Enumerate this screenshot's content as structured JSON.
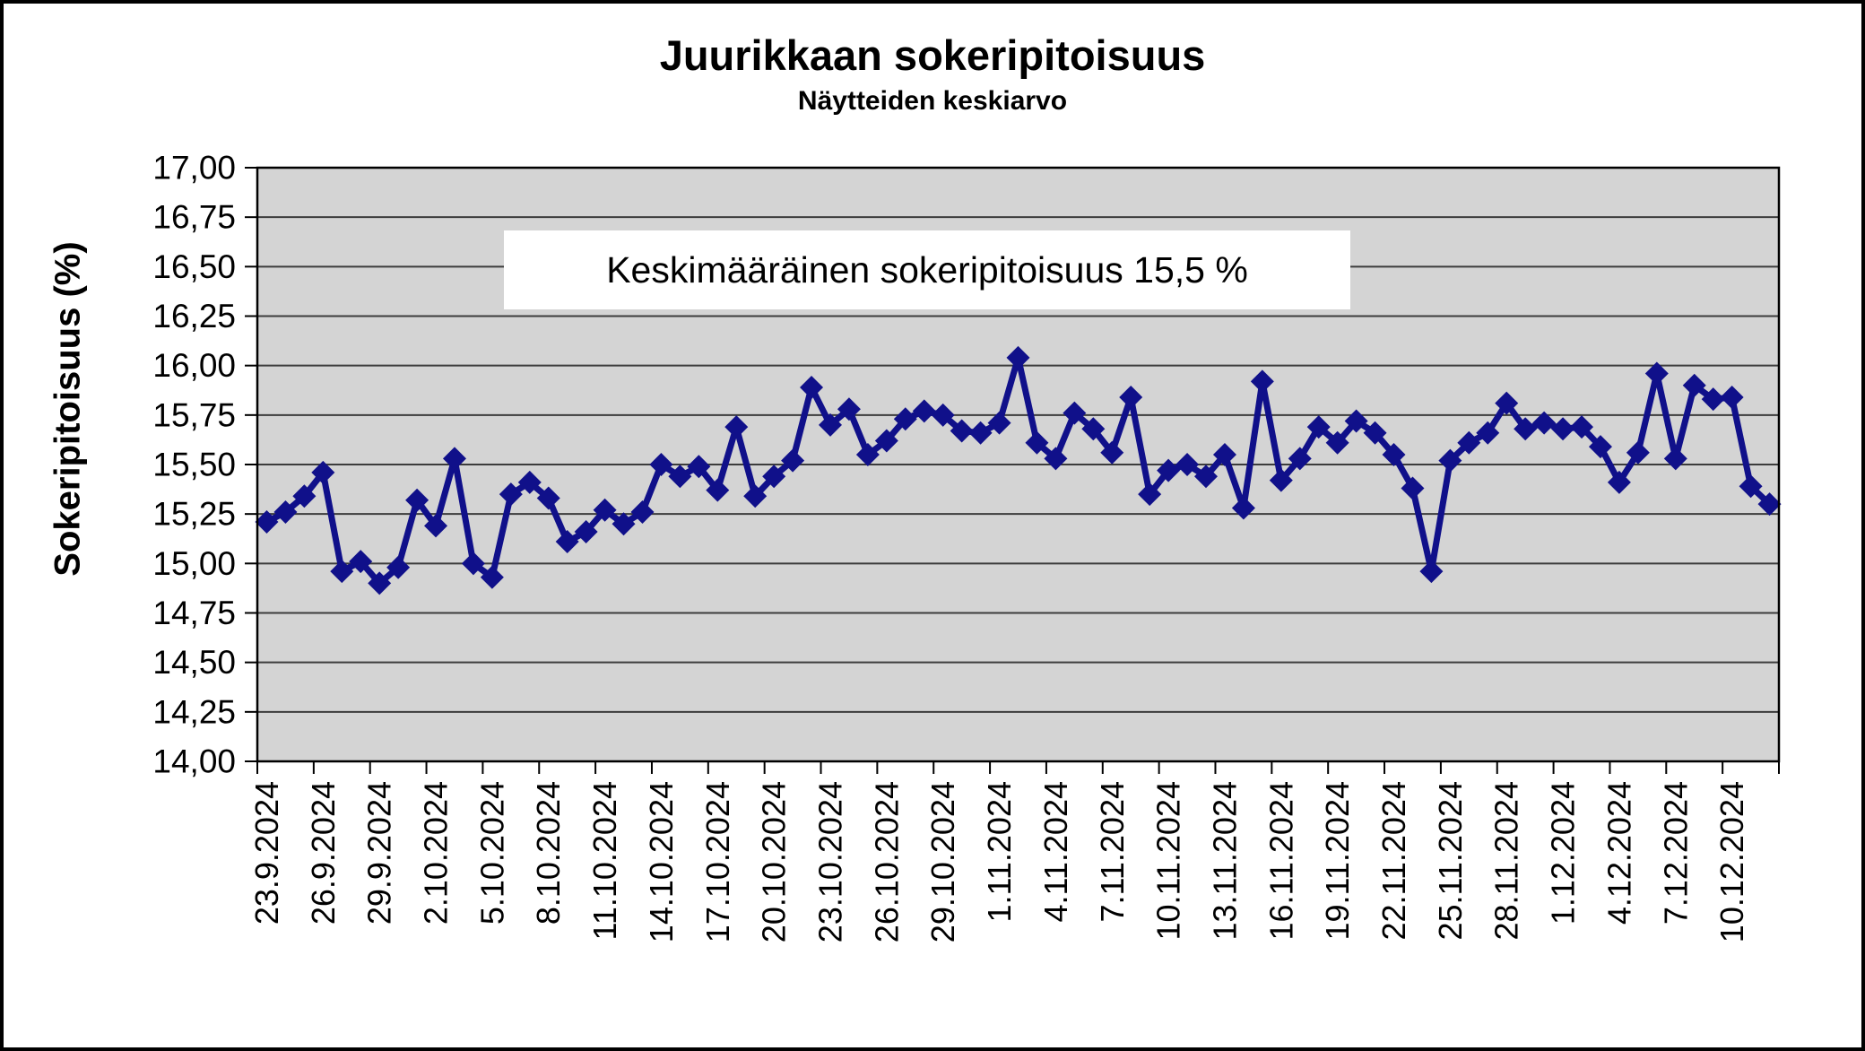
{
  "page": {
    "background": "#ffffff",
    "border_color": "#000000"
  },
  "chart": {
    "title": "Juurikkaan sokeripitoisuus",
    "subtitle": "Näytteiden keskiarvo",
    "y_axis_title": "Sokeripitoisuus (%)",
    "annotation": "Keskimääräinen sokeripitoisuus 15,5 %"
  },
  "chart_data": {
    "type": "line",
    "title": "Juurikkaan sokeripitoisuus",
    "subtitle": "Näytteiden keskiarvo",
    "xlabel": "",
    "ylabel": "Sokeripitoisuus (%)",
    "ylim": [
      14.0,
      17.0
    ],
    "ytick_step": 0.25,
    "ytick_labels": [
      "14,00",
      "14,25",
      "14,50",
      "14,75",
      "15,00",
      "15,25",
      "15,50",
      "15,75",
      "16,00",
      "16,25",
      "16,50",
      "16,75",
      "17,00"
    ],
    "xtick_labels": [
      "23.9.2024",
      "26.9.2024",
      "29.9.2024",
      "2.10.2024",
      "5.10.2024",
      "8.10.2024",
      "11.10.2024",
      "14.10.2024",
      "17.10.2024",
      "20.10.2024",
      "23.10.2024",
      "26.10.2024",
      "29.10.2024",
      "1.11.2024",
      "4.11.2024",
      "7.11.2024",
      "10.11.2024",
      "13.11.2024",
      "16.11.2024",
      "19.11.2024",
      "22.11.2024",
      "25.11.2024",
      "28.11.2024",
      "1.12.2024",
      "4.12.2024",
      "7.12.2024",
      "10.12.2024"
    ],
    "x_points_per_tick": 3,
    "grid": true,
    "legend": "none",
    "plot_bg": "#d4d4d4",
    "grid_color": "#3c3c3c",
    "axis_color": "#000000",
    "annotation": "Keskimääräinen sokeripitoisuus 15,5 %",
    "series": [
      {
        "marker": "diamond",
        "color": "#10108a",
        "values": [
          15.21,
          15.26,
          15.34,
          15.46,
          14.96,
          15.01,
          14.9,
          14.98,
          15.32,
          15.19,
          15.53,
          15.0,
          14.93,
          15.35,
          15.41,
          15.33,
          15.11,
          15.16,
          15.27,
          15.2,
          15.26,
          15.5,
          15.44,
          15.49,
          15.37,
          15.69,
          15.34,
          15.44,
          15.52,
          15.89,
          15.7,
          15.78,
          15.55,
          15.62,
          15.73,
          15.77,
          15.75,
          15.67,
          15.66,
          15.71,
          16.04,
          15.61,
          15.53,
          15.76,
          15.68,
          15.56,
          15.84,
          15.35,
          15.47,
          15.5,
          15.44,
          15.55,
          15.28,
          15.92,
          15.42,
          15.53,
          15.69,
          15.61,
          15.72,
          15.66,
          15.55,
          15.38,
          14.96,
          15.52,
          15.61,
          15.66,
          15.81,
          15.68,
          15.71,
          15.68,
          15.69,
          15.59,
          15.41,
          15.56,
          15.96,
          15.53,
          15.9,
          15.83,
          15.84,
          15.39,
          15.3
        ]
      }
    ]
  }
}
